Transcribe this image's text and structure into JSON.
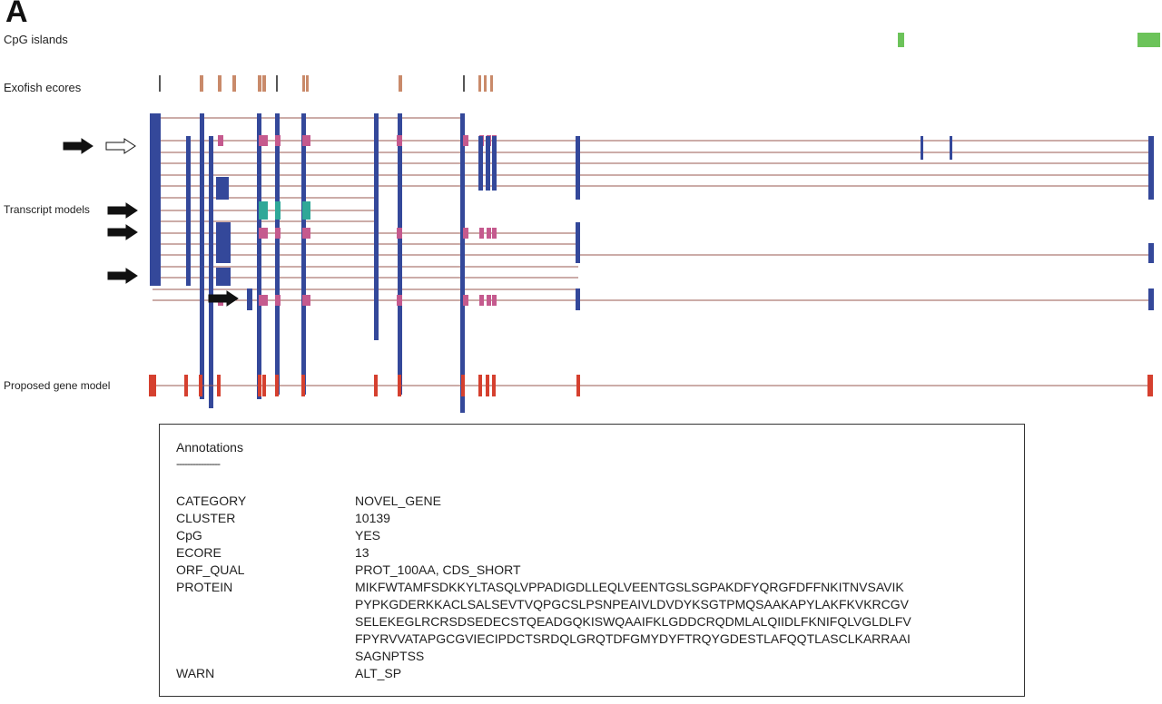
{
  "panel_label": "A",
  "tracks": {
    "cpg": "CpG islands",
    "exofish": "Exofish ecores",
    "transcripts": "Transcript models",
    "proposed": "Proposed gene model"
  },
  "colors": {
    "cpg": "#6cc35a",
    "ecore": "#c98a6a",
    "ecore_dark": "#555555",
    "exon_blue": "#34489a",
    "exon_pink": "#c55a8e",
    "exon_teal": "#2fa898",
    "intron": "#9a5a52",
    "proposed_exon": "#d5402f",
    "arrow": "#111111"
  },
  "annotations": {
    "title": "Annotations",
    "rule": "----------------",
    "rows": [
      {
        "key": "CATEGORY",
        "value": "NOVEL_GENE"
      },
      {
        "key": "CLUSTER",
        "value": "10139"
      },
      {
        "key": "CpG",
        "value": "YES"
      },
      {
        "key": "ECORE",
        "value": "13"
      },
      {
        "key": "ORF_QUAL",
        "value": "PROT_100AA, CDS_SHORT"
      }
    ],
    "protein_key": "PROTEIN",
    "protein_lines": [
      "MIKFWTAMFSDKKYLTASQLVPPADIGDLLEQLVEENTGSLSGPAKDFYQRGFDFFNKITNVSAVIK",
      "PYPKGDERKKACLSALSEVTVQPGCSLPSNPEAIVLDVDYKSGTPMQSAAKAPYLAKFKVKRCGV",
      "SELEKEGLRCRSDSEDECSTQEADGQKISWQAAIFKLGDDCRQDMLALQIIDLFKNIFQLVGLDLFV",
      "FPYRVVATAPGCGVIECIPDCTSRDQLGRQTDFGMYDYFTRQYGDESTLAFQQTLASCLKARRAAI",
      "SAGNPTSS"
    ],
    "warn_key": "WARN",
    "warn_value": "ALT_SP"
  }
}
